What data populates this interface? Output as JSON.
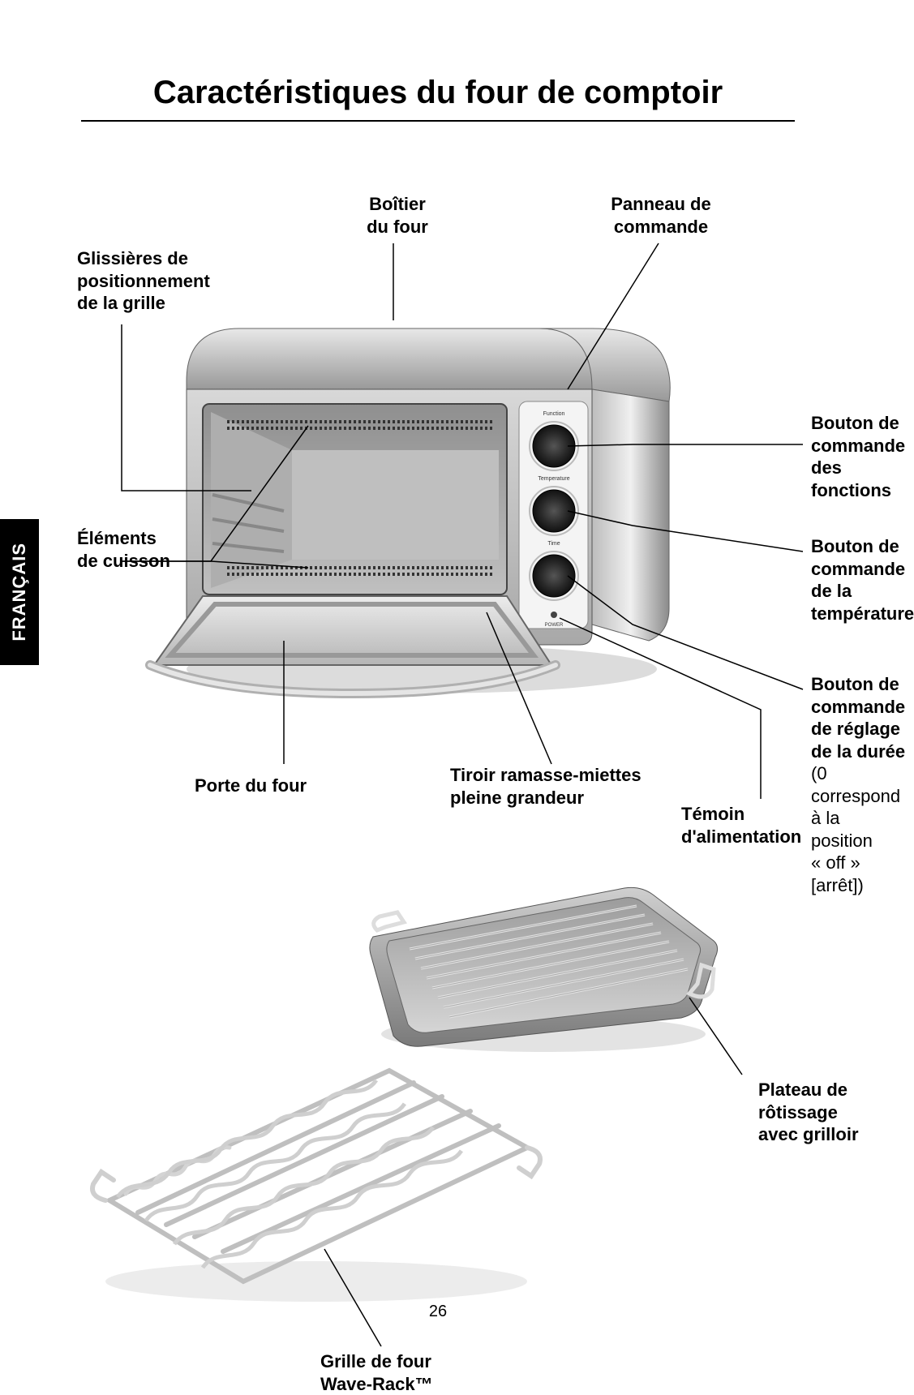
{
  "page": {
    "title": "Caractéristiques du four de comptoir",
    "number": "26",
    "language_tab": "FRANÇAIS"
  },
  "labels": {
    "housing": "Boîtier\ndu four",
    "control_panel": "Panneau de\ncommande",
    "rack_guides": "Glissières de\npositionnement\nde la grille",
    "cooking_elements": "Éléments\nde cuisson",
    "door": "Porte du four",
    "crumb_tray": "Tiroir ramasse-miettes\npleine grandeur",
    "power_light": "Témoin\nd'alimentation",
    "function_knob": "Bouton de\ncommande\ndes\nfonctions",
    "temp_knob": "Bouton de\ncommande\nde la\ntempérature",
    "time_knob": "Bouton de\ncommande\nde réglage\nde la durée",
    "time_knob_note": "(0 correspond\nà la position\n« off » [arrêt])",
    "broil_pan": "Plateau de\nrôtissage\navec grilloir",
    "wave_rack": "Grille de four\nWave-Rack™"
  },
  "oven_panel": {
    "knob_labels": [
      "Function",
      "Temperature",
      "Time"
    ],
    "power_label": "POWER"
  },
  "colors": {
    "text": "#000000",
    "bg": "#ffffff",
    "metal_light": "#e8e8e8",
    "metal_mid": "#bcbcbc",
    "metal_dark": "#6f6f6f",
    "metal_darker": "#4a4a4a",
    "panel": "#f4f4f4",
    "knob_dark": "#2a2a2a",
    "wire": "#c8c8c8",
    "wire_dark": "#9a9a9a"
  }
}
